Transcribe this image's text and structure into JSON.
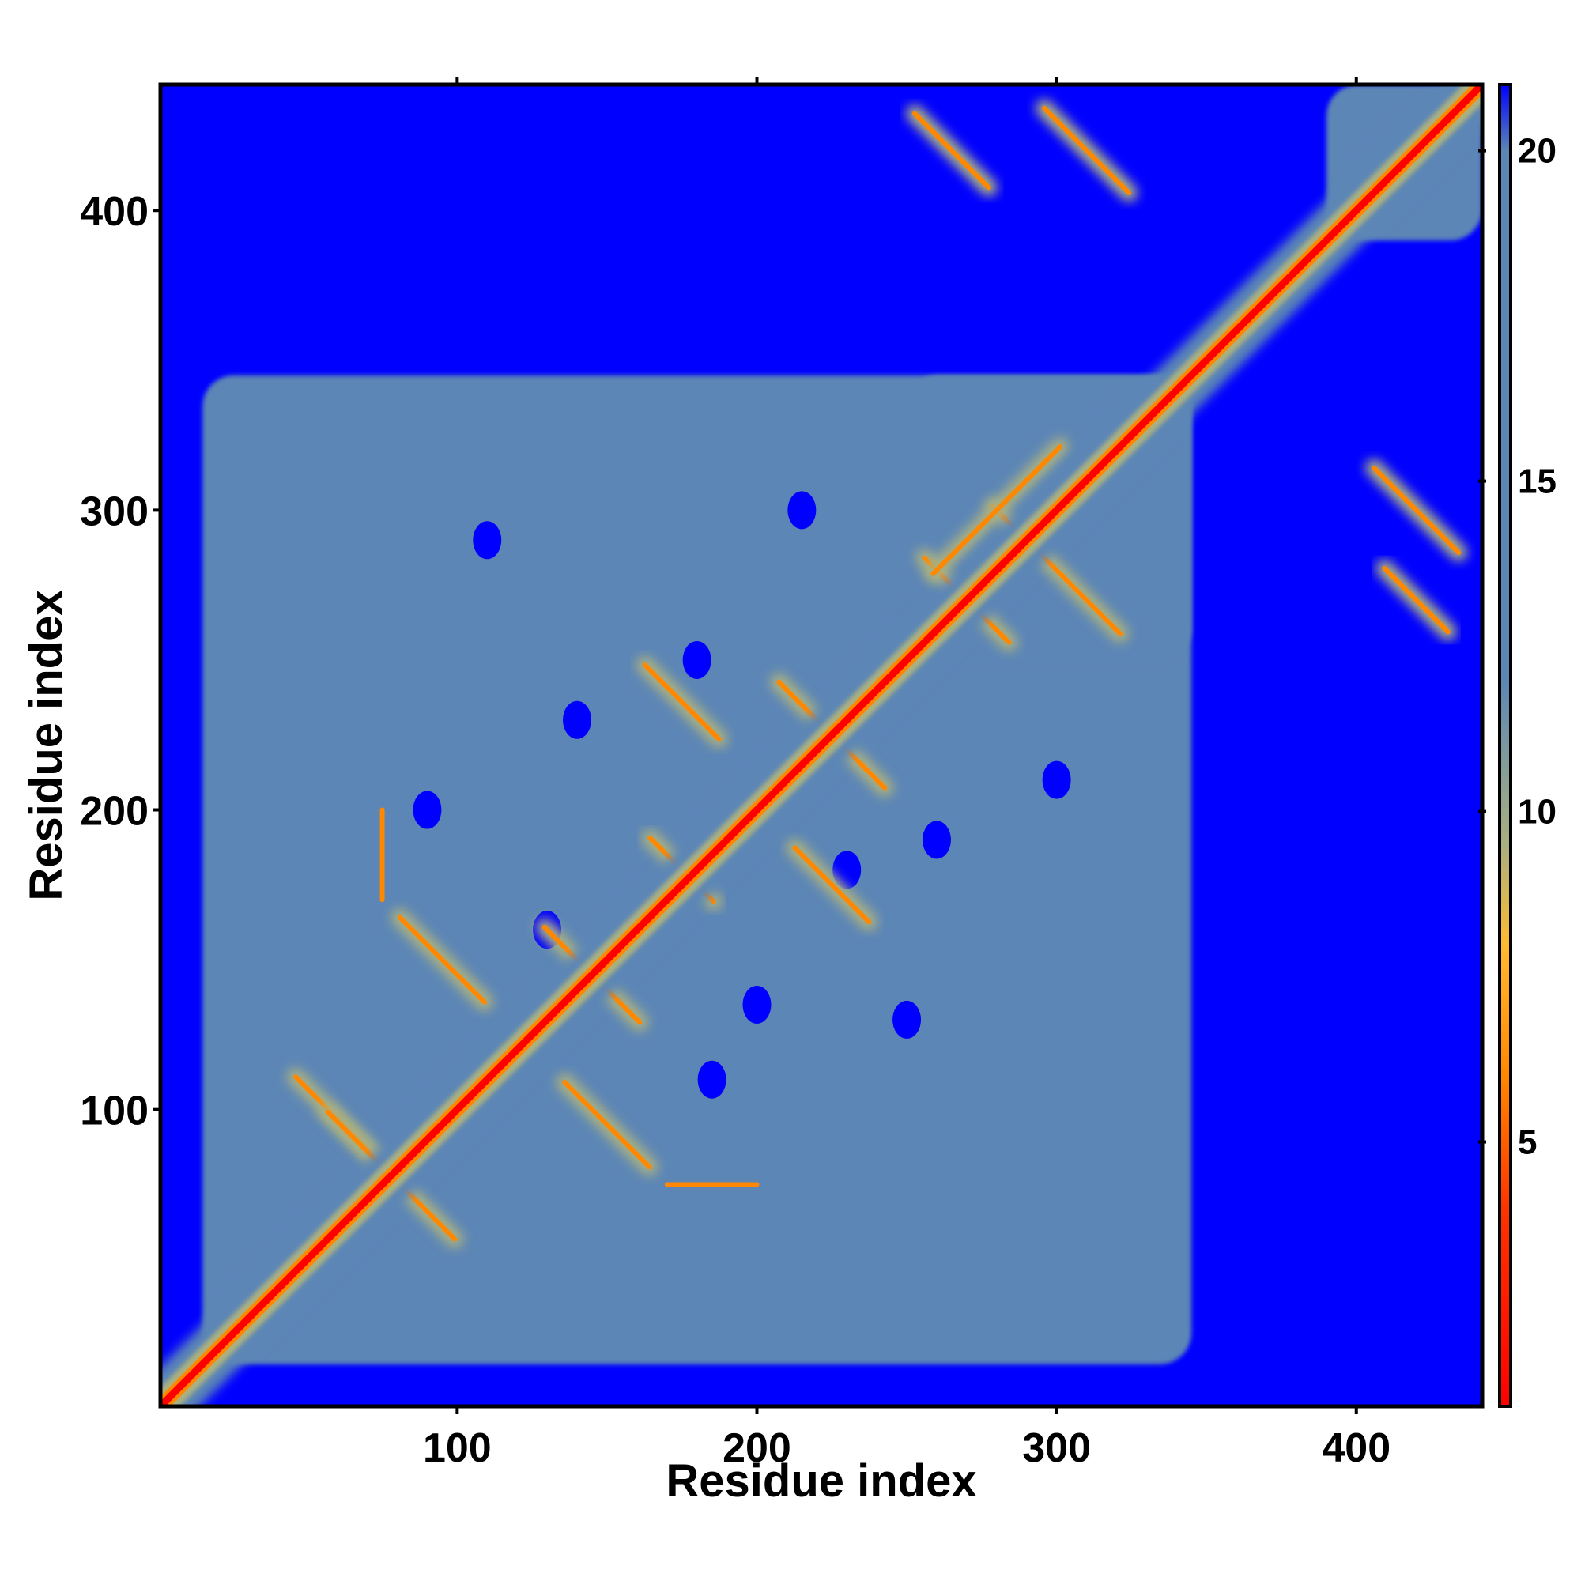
{
  "chart_data": {
    "type": "heatmap",
    "title": "",
    "xlabel": "Residue index",
    "ylabel": "Residue index",
    "xlim": [
      1,
      442
    ],
    "ylim": [
      1,
      442
    ],
    "x_ticks": [
      100,
      200,
      300,
      400
    ],
    "y_ticks": [
      100,
      200,
      300,
      400
    ],
    "x_tick_labels": [
      "100",
      "200",
      "300",
      "400"
    ],
    "y_tick_labels": [
      "100",
      "200",
      "300",
      "400"
    ],
    "colorbar": {
      "range": [
        1,
        21
      ],
      "ticks": [
        5,
        10,
        15,
        20
      ],
      "tick_labels": [
        "5",
        "10",
        "15",
        "20"
      ],
      "stops": [
        {
          "value": 1,
          "color": "#ff0000"
        },
        {
          "value": 4,
          "color": "#ff3300"
        },
        {
          "value": 6,
          "color": "#ff8800"
        },
        {
          "value": 8,
          "color": "#ffbb33"
        },
        {
          "value": 9.5,
          "color": "#aab080"
        },
        {
          "value": 12,
          "color": "#5b86b6"
        },
        {
          "value": 20,
          "color": "#5b86b6"
        },
        {
          "value": 21,
          "color": "#0000ff"
        }
      ]
    },
    "colors": {
      "background": "#0000ff",
      "domain": "#5b86b6",
      "edge": "#aab080",
      "contact": "#ff8800",
      "core": "#ff0000"
    },
    "domains": [
      {
        "residues": [
          15,
          345
        ],
        "distance": 16
      },
      {
        "residues": [
          250,
          345
        ],
        "distance": 15
      },
      {
        "residues": [
          390,
          442
        ],
        "distance": 15
      }
    ],
    "off_diagonal_contacts": [
      {
        "i": 62,
        "j": 95,
        "angle": -45,
        "length": 45
      },
      {
        "i": 78,
        "j": 78,
        "angle": -45,
        "length": 60
      },
      {
        "i": 150,
        "j": 95,
        "angle": -45,
        "length": 40
      },
      {
        "i": 95,
        "j": 150,
        "angle": -45,
        "length": 40
      },
      {
        "i": 145,
        "j": 145,
        "angle": -45,
        "length": 45
      },
      {
        "i": 175,
        "j": 236,
        "angle": -45,
        "length": 35
      },
      {
        "i": 225,
        "j": 225,
        "angle": -45,
        "length": 50
      },
      {
        "i": 175,
        "j": 180,
        "angle": -45,
        "length": 30
      },
      {
        "i": 225,
        "j": 175,
        "angle": -45,
        "length": 35
      },
      {
        "i": 270,
        "j": 270,
        "angle": -45,
        "length": 40
      },
      {
        "i": 300,
        "j": 280,
        "angle": -45,
        "length": 60
      },
      {
        "i": 280,
        "j": 300,
        "angle": 45,
        "length": 60
      },
      {
        "i": 265,
        "j": 420,
        "angle": -45,
        "length": 35
      },
      {
        "i": 310,
        "j": 420,
        "angle": -45,
        "length": 40
      },
      {
        "i": 420,
        "j": 300,
        "angle": -45,
        "length": 40
      },
      {
        "i": 420,
        "j": 270,
        "angle": -45,
        "length": 30
      },
      {
        "i": 185,
        "j": 75,
        "angle": 0,
        "length": 30
      },
      {
        "i": 75,
        "j": 185,
        "angle": 90,
        "length": 30
      }
    ]
  }
}
